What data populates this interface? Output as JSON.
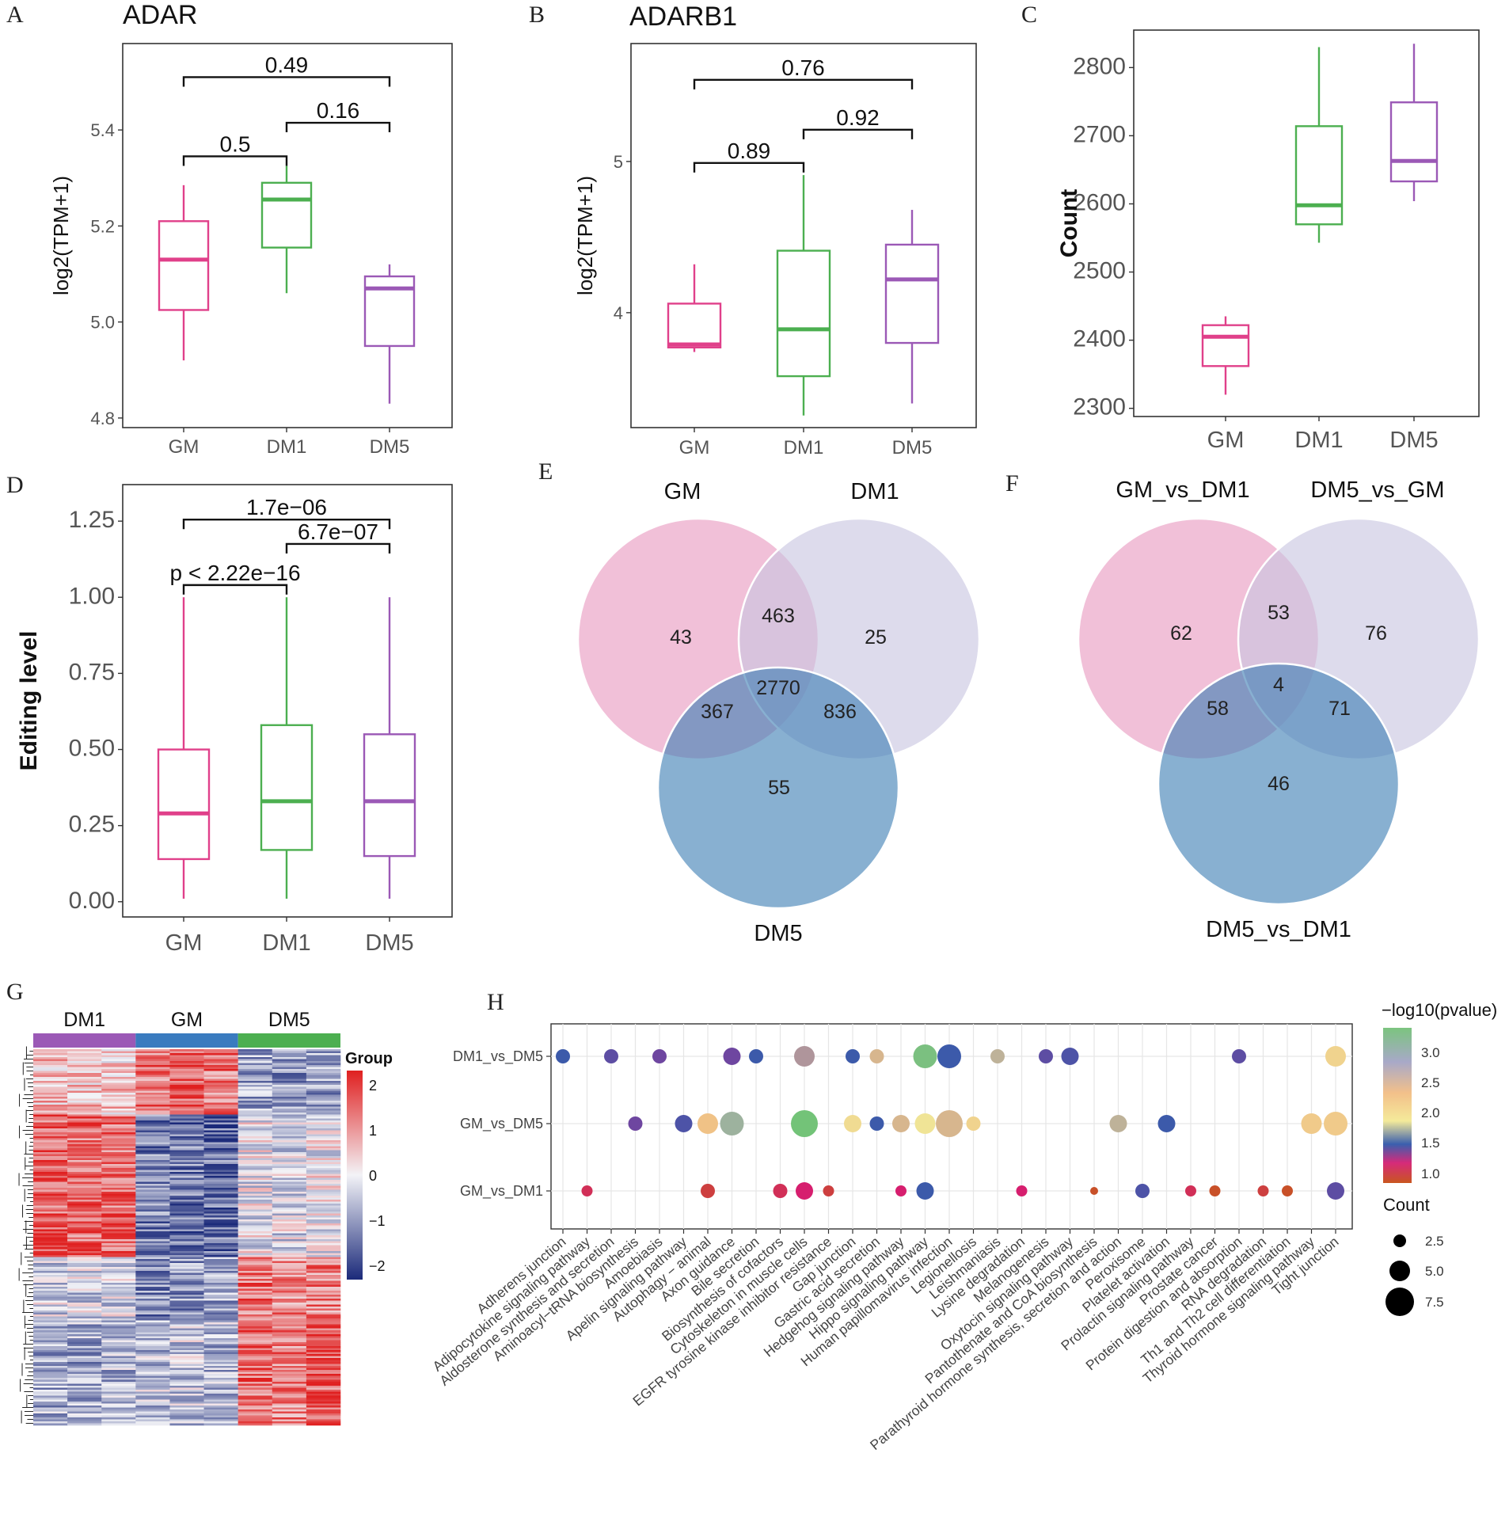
{
  "panels": {
    "A": {
      "letter": "A",
      "title": "ADAR"
    },
    "B": {
      "letter": "B",
      "title": "ADARB1"
    },
    "C": {
      "letter": "C"
    },
    "D": {
      "letter": "D"
    },
    "E": {
      "letter": "E"
    },
    "F": {
      "letter": "F"
    },
    "G": {
      "letter": "G"
    },
    "H": {
      "letter": "H"
    }
  },
  "group_colors": {
    "GM": "#e0408a",
    "DM1": "#4caf50",
    "DM5": "#9b59b6"
  },
  "chart_data": [
    {
      "id": "A",
      "type": "box",
      "title": "ADAR",
      "ylabel": "log2(TPM+1)",
      "ylim": [
        4.78,
        5.58
      ],
      "yticks": [
        4.8,
        5.0,
        5.2,
        5.4
      ],
      "ytick_labels": [
        "4.8",
        "5.0",
        "5.2",
        "5.4"
      ],
      "categories": [
        "GM",
        "DM1",
        "DM5"
      ],
      "boxes": [
        {
          "group": "GM",
          "min": 4.92,
          "q1": 5.025,
          "median": 5.13,
          "q3": 5.21,
          "max": 5.285
        },
        {
          "group": "DM1",
          "min": 5.06,
          "q1": 5.155,
          "median": 5.255,
          "q3": 5.29,
          "max": 5.325
        },
        {
          "group": "DM5",
          "min": 4.83,
          "q1": 4.95,
          "median": 5.07,
          "q3": 5.095,
          "max": 5.12
        }
      ],
      "comparisons": [
        {
          "from": "GM",
          "to": "DM5",
          "label": "0.49",
          "y": 5.51
        },
        {
          "from": "DM1",
          "to": "DM5",
          "label": "0.16",
          "y": 5.415
        },
        {
          "from": "GM",
          "to": "DM1",
          "label": "0.5",
          "y": 5.345
        }
      ]
    },
    {
      "id": "B",
      "type": "box",
      "title": "ADARB1",
      "ylabel": "log2(TPM+1)",
      "ylim": [
        3.24,
        5.78
      ],
      "yticks": [
        4,
        5
      ],
      "ytick_labels": [
        "4",
        "5"
      ],
      "categories": [
        "GM",
        "DM1",
        "DM5"
      ],
      "boxes": [
        {
          "group": "GM",
          "min": 3.74,
          "q1": 3.77,
          "median": 3.79,
          "q3": 4.06,
          "max": 4.32
        },
        {
          "group": "DM1",
          "min": 3.32,
          "q1": 3.58,
          "median": 3.89,
          "q3": 4.41,
          "max": 4.91
        },
        {
          "group": "DM5",
          "min": 3.4,
          "q1": 3.8,
          "median": 4.22,
          "q3": 4.45,
          "max": 4.68
        }
      ],
      "comparisons": [
        {
          "from": "GM",
          "to": "DM5",
          "label": "0.76",
          "y": 5.54
        },
        {
          "from": "DM1",
          "to": "DM5",
          "label": "0.92",
          "y": 5.21
        },
        {
          "from": "GM",
          "to": "DM1",
          "label": "0.89",
          "y": 4.99
        }
      ]
    },
    {
      "id": "C",
      "type": "box",
      "ylabel": "Count",
      "ylim": [
        2288,
        2855
      ],
      "yticks": [
        2300,
        2400,
        2500,
        2600,
        2700,
        2800
      ],
      "ytick_labels": [
        "2300",
        "2400",
        "2500",
        "2600",
        "2700",
        "2800"
      ],
      "categories": [
        "GM",
        "DM1",
        "DM5"
      ],
      "boxes": [
        {
          "group": "GM",
          "min": 2320,
          "q1": 2362,
          "median": 2405,
          "q3": 2422,
          "max": 2435
        },
        {
          "group": "DM1",
          "min": 2543,
          "q1": 2570,
          "median": 2598,
          "q3": 2714,
          "max": 2830
        },
        {
          "group": "DM5",
          "min": 2604,
          "q1": 2633,
          "median": 2663,
          "q3": 2749,
          "max": 2835
        }
      ],
      "comparisons": []
    },
    {
      "id": "D",
      "type": "box",
      "ylabel": "Editing level",
      "ylim": [
        -0.05,
        1.37
      ],
      "yticks": [
        0.0,
        0.25,
        0.5,
        0.75,
        1.0,
        1.25
      ],
      "ytick_labels": [
        "0.00",
        "0.25",
        "0.50",
        "0.75",
        "1.00",
        "1.25"
      ],
      "categories": [
        "GM",
        "DM1",
        "DM5"
      ],
      "boxes": [
        {
          "group": "GM",
          "min": 0.01,
          "q1": 0.14,
          "median": 0.29,
          "q3": 0.5,
          "max": 1.0
        },
        {
          "group": "DM1",
          "min": 0.01,
          "q1": 0.17,
          "median": 0.33,
          "q3": 0.58,
          "max": 1.0
        },
        {
          "group": "DM5",
          "min": 0.01,
          "q1": 0.15,
          "median": 0.33,
          "q3": 0.55,
          "max": 1.0
        }
      ],
      "comparisons": [
        {
          "from": "GM",
          "to": "DM5",
          "label": "1.7e−06",
          "y": 1.255
        },
        {
          "from": "DM1",
          "to": "DM5",
          "label": "6.7e−07",
          "y": 1.175
        },
        {
          "from": "GM",
          "to": "DM1",
          "label": "p < 2.22e−16",
          "y": 1.04
        }
      ]
    },
    {
      "id": "E",
      "type": "venn",
      "sets": [
        "GM",
        "DM1",
        "DM5"
      ],
      "colors": [
        "#e899c0",
        "#c8c5e0",
        "#3f7fb5"
      ],
      "regions": {
        "GM_only": "43",
        "DM1_only": "25",
        "DM5_only": "55",
        "GM_DM1": "463",
        "GM_DM5": "367",
        "DM1_DM5": "836",
        "all": "2770"
      }
    },
    {
      "id": "F",
      "type": "venn",
      "sets": [
        "GM_vs_DM1",
        "DM5_vs_GM",
        "DM5_vs_DM1"
      ],
      "colors": [
        "#e899c0",
        "#c8c5e0",
        "#3f7fb5"
      ],
      "regions": {
        "A_only": "62",
        "B_only": "76",
        "C_only": "46",
        "AB": "53",
        "AC": "58",
        "BC": "71",
        "all": "4"
      }
    },
    {
      "id": "G",
      "type": "heatmap",
      "groups": [
        {
          "name": "DM1",
          "color": "#9b59b6"
        },
        {
          "name": "GM",
          "color": "#3a7bbf"
        },
        {
          "name": "DM5",
          "color": "#4caf50"
        }
      ],
      "legend_title": "Group",
      "scale": [
        -2,
        2
      ],
      "scale_ticks": [
        "2",
        "1",
        "0",
        "−1",
        "−2"
      ],
      "colors": {
        "low": "#1b2a7a",
        "mid": "#f3f3f7",
        "high": "#e02020"
      }
    },
    {
      "id": "H",
      "type": "scatter",
      "rows": [
        "DM1_vs_DM5",
        "GM_vs_DM5",
        "GM_vs_DM1"
      ],
      "pathways": [
        "Adherens junction",
        "Adipocytokine signaling pathway",
        "Aldosterone synthesis and secretion",
        "Aminoacyl−tRNA biosynthesis",
        "Amoebiasis",
        "Apelin signaling pathway",
        "Autophagy − animal",
        "Axon guidance",
        "Bile secretion",
        "Biosynthesis of cofactors",
        "Cytoskeleton in muscle cells",
        "EGFR tyrosine kinase inhibitor resistance",
        "Gap junction",
        "Gastric acid secretion",
        "Hedgehog signaling pathway",
        "Hippo signaling pathway",
        "Human papillomavirus infection",
        "Legionellosis",
        "Leishmaniasis",
        "Lysine degradation",
        "Melanogenesis",
        "Oxytocin signaling pathway",
        "Pantothenate and CoA biosynthesis",
        "Parathyroid hormone synthesis, secretion and action",
        "Peroxisome",
        "Platelet activation",
        "Prolactin signaling pathway",
        "Prostate cancer",
        "Protein digestion and absorption",
        "RNA degradation",
        "Th1 and Th2 cell differentiation",
        "Thyroid hormone signaling pathway",
        "Tight junction"
      ],
      "color_legend_title": "−log10(pvalue)",
      "color_ticks": [
        "3.0",
        "2.5",
        "2.0",
        "1.5",
        "1.0"
      ],
      "size_legend_title": "Count",
      "size_ticks": [
        "2.5",
        "5.0",
        "7.5"
      ],
      "points": [
        {
          "row": 0,
          "x": 0,
          "count": 3,
          "nlp": 1.5
        },
        {
          "row": 0,
          "x": 2,
          "count": 3,
          "nlp": 1.7
        },
        {
          "row": 0,
          "x": 4,
          "count": 3,
          "nlp": 1.8
        },
        {
          "row": 0,
          "x": 7,
          "count": 4,
          "nlp": 1.8
        },
        {
          "row": 0,
          "x": 8,
          "count": 3,
          "nlp": 1.5
        },
        {
          "row": 0,
          "x": 10,
          "count": 5,
          "nlp": 1.9
        },
        {
          "row": 0,
          "x": 12,
          "count": 3,
          "nlp": 1.5
        },
        {
          "row": 0,
          "x": 13,
          "count": 3,
          "nlp": 2.6
        },
        {
          "row": 0,
          "x": 15,
          "count": 6,
          "nlp": 3.3
        },
        {
          "row": 0,
          "x": 16,
          "count": 6,
          "nlp": 1.5
        },
        {
          "row": 0,
          "x": 18,
          "count": 3,
          "nlp": 2.7
        },
        {
          "row": 0,
          "x": 20,
          "count": 3,
          "nlp": 1.7
        },
        {
          "row": 0,
          "x": 21,
          "count": 4,
          "nlp": 1.6
        },
        {
          "row": 0,
          "x": 28,
          "count": 3,
          "nlp": 1.7
        },
        {
          "row": 0,
          "x": 32,
          "count": 5,
          "nlp": 2.2
        },
        {
          "row": 1,
          "x": 3,
          "count": 3,
          "nlp": 1.8
        },
        {
          "row": 1,
          "x": 5,
          "count": 4,
          "nlp": 1.6
        },
        {
          "row": 1,
          "x": 6,
          "count": 5,
          "nlp": 2.4
        },
        {
          "row": 1,
          "x": 7,
          "count": 6,
          "nlp": 2.9
        },
        {
          "row": 1,
          "x": 10,
          "count": 7,
          "nlp": 3.4
        },
        {
          "row": 1,
          "x": 12,
          "count": 4,
          "nlp": 2.1
        },
        {
          "row": 1,
          "x": 13,
          "count": 3,
          "nlp": 1.5
        },
        {
          "row": 1,
          "x": 14,
          "count": 4,
          "nlp": 2.6
        },
        {
          "row": 1,
          "x": 15,
          "count": 5,
          "nlp": 2.0
        },
        {
          "row": 1,
          "x": 16,
          "count": 7,
          "nlp": 2.6
        },
        {
          "row": 1,
          "x": 17,
          "count": 3,
          "nlp": 2.2
        },
        {
          "row": 1,
          "x": 23,
          "count": 4,
          "nlp": 2.7
        },
        {
          "row": 1,
          "x": 25,
          "count": 4,
          "nlp": 1.5
        },
        {
          "row": 1,
          "x": 31,
          "count": 5,
          "nlp": 2.3
        },
        {
          "row": 1,
          "x": 32,
          "count": 6,
          "nlp": 2.3
        },
        {
          "row": 2,
          "x": 1,
          "count": 2,
          "nlp": 1.2
        },
        {
          "row": 2,
          "x": 6,
          "count": 3,
          "nlp": 1.1
        },
        {
          "row": 2,
          "x": 9,
          "count": 3,
          "nlp": 1.2
        },
        {
          "row": 2,
          "x": 10,
          "count": 4,
          "nlp": 1.3
        },
        {
          "row": 2,
          "x": 11,
          "count": 2,
          "nlp": 1.1
        },
        {
          "row": 2,
          "x": 14,
          "count": 2,
          "nlp": 1.3
        },
        {
          "row": 2,
          "x": 15,
          "count": 4,
          "nlp": 1.5
        },
        {
          "row": 2,
          "x": 19,
          "count": 2,
          "nlp": 1.3
        },
        {
          "row": 2,
          "x": 22,
          "count": 1,
          "nlp": 1.0
        },
        {
          "row": 2,
          "x": 24,
          "count": 3,
          "nlp": 1.6
        },
        {
          "row": 2,
          "x": 26,
          "count": 2,
          "nlp": 1.2
        },
        {
          "row": 2,
          "x": 27,
          "count": 2,
          "nlp": 1.0
        },
        {
          "row": 2,
          "x": 29,
          "count": 2,
          "nlp": 1.1
        },
        {
          "row": 2,
          "x": 30,
          "count": 2,
          "nlp": 1.0
        },
        {
          "row": 2,
          "x": 32,
          "count": 4,
          "nlp": 1.7
        }
      ]
    }
  ]
}
